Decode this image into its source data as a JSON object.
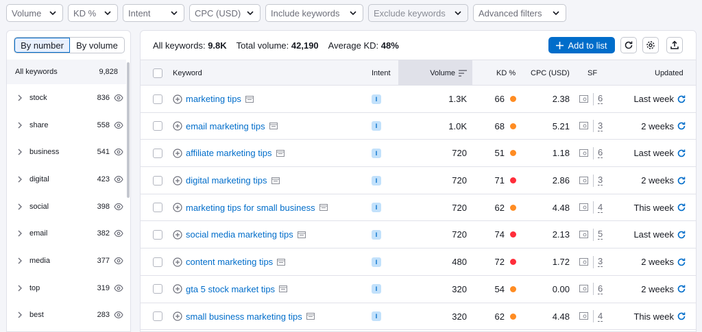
{
  "filters": [
    {
      "label": "Volume",
      "disabled": false
    },
    {
      "label": "KD %",
      "disabled": false
    },
    {
      "label": "Intent",
      "disabled": false
    },
    {
      "label": "CPC (USD)",
      "disabled": false
    },
    {
      "label": "Include keywords",
      "disabled": false
    },
    {
      "label": "Exclude keywords",
      "disabled": true
    },
    {
      "label": "Advanced filters",
      "disabled": false
    }
  ],
  "sidebar": {
    "toggle": {
      "by_number": "By number",
      "by_volume": "By volume"
    },
    "all_label": "All keywords",
    "all_count": "9,828",
    "items": [
      {
        "label": "stock",
        "count": "836"
      },
      {
        "label": "share",
        "count": "558"
      },
      {
        "label": "business",
        "count": "541"
      },
      {
        "label": "digital",
        "count": "423"
      },
      {
        "label": "social",
        "count": "398"
      },
      {
        "label": "email",
        "count": "382"
      },
      {
        "label": "media",
        "count": "377"
      },
      {
        "label": "top",
        "count": "319"
      },
      {
        "label": "best",
        "count": "283"
      }
    ]
  },
  "summary": {
    "all_keywords_label": "All keywords:",
    "all_keywords_value": "9.8K",
    "total_volume_label": "Total volume:",
    "total_volume_value": "42,190",
    "avg_kd_label": "Average KD:",
    "avg_kd_value": "48%"
  },
  "toolbar": {
    "add_to_list": "Add to list"
  },
  "table": {
    "headers": {
      "keyword": "Keyword",
      "intent": "Intent",
      "volume": "Volume",
      "kd": "KD %",
      "cpc": "CPC (USD)",
      "sf": "SF",
      "updated": "Updated"
    },
    "rows": [
      {
        "keyword": "marketing tips",
        "intent": "I",
        "volume": "1.3K",
        "kd": "66",
        "kd_color": "#ff8c22",
        "cpc": "2.38",
        "sf": "6",
        "updated": "Last week"
      },
      {
        "keyword": "email marketing tips",
        "intent": "I",
        "volume": "1.0K",
        "kd": "68",
        "kd_color": "#ff8c22",
        "cpc": "5.21",
        "sf": "3",
        "updated": "2 weeks"
      },
      {
        "keyword": "affiliate marketing tips",
        "intent": "I",
        "volume": "720",
        "kd": "51",
        "kd_color": "#ff8c22",
        "cpc": "1.18",
        "sf": "6",
        "updated": "Last week"
      },
      {
        "keyword": "digital marketing tips",
        "intent": "I",
        "volume": "720",
        "kd": "71",
        "kd_color": "#ff2d3a",
        "cpc": "2.86",
        "sf": "3",
        "updated": "2 weeks"
      },
      {
        "keyword": "marketing tips for small business",
        "intent": "I",
        "volume": "720",
        "kd": "62",
        "kd_color": "#ff8c22",
        "cpc": "4.48",
        "sf": "4",
        "updated": "This week"
      },
      {
        "keyword": "social media marketing tips",
        "intent": "I",
        "volume": "720",
        "kd": "74",
        "kd_color": "#ff2d3a",
        "cpc": "2.13",
        "sf": "5",
        "updated": "Last week"
      },
      {
        "keyword": "content marketing tips",
        "intent": "I",
        "volume": "480",
        "kd": "72",
        "kd_color": "#ff2d3a",
        "cpc": "1.72",
        "sf": "3",
        "updated": "2 weeks"
      },
      {
        "keyword": "gta 5 stock market tips",
        "intent": "I",
        "volume": "320",
        "kd": "54",
        "kd_color": "#ff8c22",
        "cpc": "0.00",
        "sf": "6",
        "updated": "2 weeks"
      },
      {
        "keyword": "small business marketing tips",
        "intent": "I",
        "volume": "320",
        "kd": "62",
        "kd_color": "#ff8c22",
        "cpc": "4.48",
        "sf": "4",
        "updated": "This week"
      }
    ]
  }
}
